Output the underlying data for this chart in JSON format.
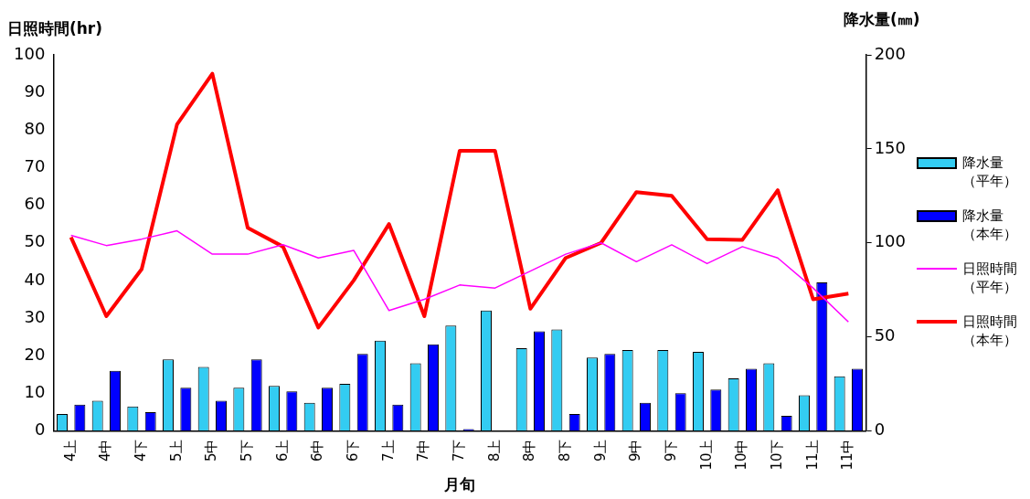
{
  "chart_data": {
    "type": "bar",
    "xlabel": "月旬",
    "ylabel": "日照時間(hr)",
    "y2label": "降水量(㎜)",
    "categories": [
      "4上",
      "4中",
      "4下",
      "5上",
      "5中",
      "5下",
      "6上",
      "6中",
      "6下",
      "7上",
      "7中",
      "7下",
      "8上",
      "8中",
      "8下",
      "9上",
      "9中",
      "9下",
      "10上",
      "10中",
      "10下",
      "11上",
      "11中"
    ],
    "series": [
      {
        "name": "降水量（平年）",
        "axis": "y2",
        "color": "#33ccf2",
        "values": [
          9,
          16,
          13,
          38,
          34,
          23,
          24,
          15,
          25,
          48,
          36,
          56,
          64,
          44,
          54,
          39,
          43,
          43,
          42,
          28,
          36,
          19,
          29
        ]
      },
      {
        "name": "降水量（本年）",
        "axis": "y2",
        "color": "#0000ff",
        "values": [
          14,
          32,
          10,
          23,
          16,
          38,
          21,
          23,
          41,
          14,
          46,
          1,
          0,
          53,
          9,
          41,
          15,
          20,
          22,
          33,
          8,
          79,
          33
        ]
      },
      {
        "name": "日照時間（平年）",
        "type": "line",
        "color": "#ff00ff",
        "values": [
          52,
          49.3,
          51,
          53.2,
          47,
          47,
          49.5,
          46,
          48,
          32,
          35,
          38.8,
          38,
          42.5,
          47,
          50,
          45,
          49.5,
          44.5,
          49,
          46,
          38,
          29
        ]
      },
      {
        "name": "日照時間（本年）",
        "type": "line",
        "color": "#ff0000",
        "values": [
          51.5,
          30.5,
          43,
          81.5,
          95,
          54,
          49,
          27.5,
          40,
          55,
          30.5,
          74.5,
          74.5,
          32.5,
          46,
          50,
          63.5,
          62.5,
          51,
          50.8,
          64,
          35,
          36.5
        ]
      }
    ],
    "ylim": [
      0,
      100
    ],
    "yticks": [
      0,
      10,
      20,
      30,
      40,
      50,
      60,
      70,
      80,
      90,
      100
    ],
    "y2lim": [
      0,
      200
    ],
    "y2ticks": [
      0,
      50,
      100,
      150,
      200
    ],
    "grid": false,
    "legend": "right",
    "marker": "none"
  }
}
